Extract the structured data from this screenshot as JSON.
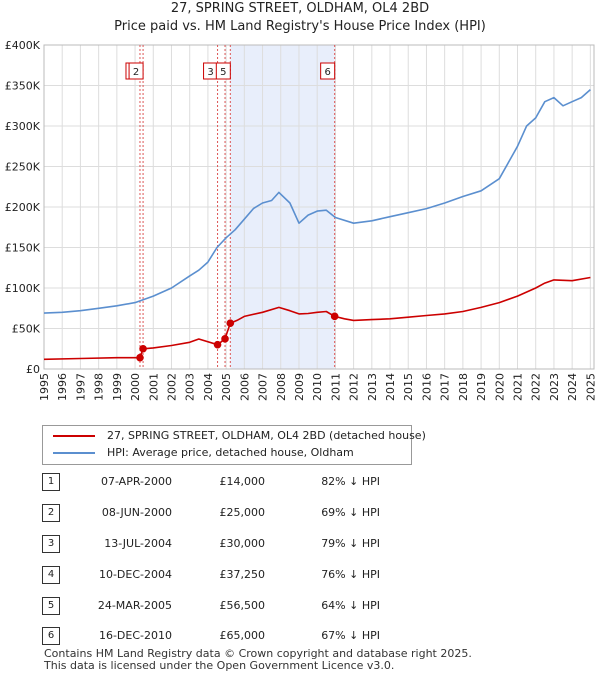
{
  "title": {
    "line1": "27, SPRING STREET, OLDHAM, OL4 2BD",
    "line2": "Price paid vs. HM Land Registry's House Price Index (HPI)"
  },
  "colors": {
    "property": "#cc0000",
    "hpi": "#5b8fcf",
    "shade": "#e8eefb",
    "grid": "#dddddd",
    "marker_box": "#cc0000"
  },
  "legend": {
    "property_label": "27, SPRING STREET, OLDHAM, OL4 2BD (detached house)",
    "hpi_label": "HPI: Average price, detached house, Oldham"
  },
  "chart_data": {
    "type": "line",
    "xlim": [
      1995,
      2025.2
    ],
    "ylim": [
      0,
      400000
    ],
    "x_ticks": [
      "1995",
      "1996",
      "1997",
      "1998",
      "1999",
      "2000",
      "2001",
      "2002",
      "2003",
      "2004",
      "2005",
      "2006",
      "2007",
      "2008",
      "2009",
      "2010",
      "2011",
      "2012",
      "2013",
      "2014",
      "2015",
      "2016",
      "2017",
      "2018",
      "2019",
      "2020",
      "2021",
      "2022",
      "2023",
      "2024",
      "2025"
    ],
    "y_ticks": [
      {
        "value": 0,
        "label": "£0"
      },
      {
        "value": 50000,
        "label": "£50K"
      },
      {
        "value": 100000,
        "label": "£100K"
      },
      {
        "value": 150000,
        "label": "£150K"
      },
      {
        "value": 200000,
        "label": "£200K"
      },
      {
        "value": 250000,
        "label": "£250K"
      },
      {
        "value": 300000,
        "label": "£300K"
      },
      {
        "value": 350000,
        "label": "£350K"
      },
      {
        "value": 400000,
        "label": "£400K"
      }
    ],
    "shaded_range": [
      2005.23,
      2010.96
    ],
    "series": [
      {
        "name": "HPI: Average price, detached house, Oldham",
        "x": [
          1995,
          1996,
          1997,
          1998,
          1999,
          2000,
          2001,
          2002,
          2003,
          2003.5,
          2004,
          2004.5,
          2005,
          2005.5,
          2006,
          2006.5,
          2007,
          2007.5,
          2007.9,
          2008.5,
          2009,
          2009.5,
          2010,
          2010.5,
          2011,
          2012,
          2013,
          2014,
          2015,
          2016,
          2017,
          2018,
          2019,
          2020,
          2020.5,
          2021,
          2021.5,
          2022,
          2022.5,
          2023,
          2023.5,
          2024,
          2024.5,
          2025
        ],
        "y": [
          69000,
          70000,
          72000,
          75000,
          78000,
          82000,
          90000,
          100000,
          115000,
          122000,
          132000,
          150000,
          162000,
          172000,
          185000,
          198000,
          205000,
          208000,
          218000,
          205000,
          180000,
          190000,
          195000,
          196000,
          187000,
          180000,
          183000,
          188000,
          193000,
          198000,
          205000,
          213000,
          220000,
          235000,
          255000,
          275000,
          300000,
          310000,
          330000,
          335000,
          325000,
          330000,
          335000,
          345000
        ]
      },
      {
        "name": "27, SPRING STREET, OLDHAM, OL4 2BD (detached house)",
        "x": [
          1995,
          1997,
          1999,
          2000.27,
          2000.44,
          2001,
          2002,
          2003,
          2003.5,
          2004.53,
          2004.94,
          2005.23,
          2005.6,
          2006,
          2007,
          2007.9,
          2008.5,
          2009,
          2009.5,
          2010,
          2010.5,
          2010.96,
          2011.5,
          2012,
          2013,
          2014,
          2015,
          2016,
          2017,
          2018,
          2019,
          2020,
          2021,
          2022,
          2022.5,
          2023,
          2024,
          2025
        ],
        "y": [
          12000,
          13000,
          14000,
          14000,
          25000,
          26000,
          29000,
          33000,
          37000,
          30000,
          37250,
          56500,
          60000,
          65000,
          70000,
          76000,
          72000,
          68000,
          68500,
          70000,
          71000,
          65000,
          62000,
          60000,
          61000,
          62000,
          64000,
          66000,
          68000,
          71000,
          76000,
          82000,
          90000,
          100000,
          106000,
          110000,
          109000,
          113000
        ]
      }
    ],
    "sales": [
      {
        "id": "1",
        "date": "07-APR-2000",
        "price": "£14,000",
        "hpi": "82% ↓ HPI",
        "x": 2000.27,
        "y": 14000
      },
      {
        "id": "2",
        "date": "08-JUN-2000",
        "price": "£25,000",
        "hpi": "69% ↓ HPI",
        "x": 2000.44,
        "y": 25000
      },
      {
        "id": "3",
        "date": "13-JUL-2004",
        "price": "£30,000",
        "hpi": "79% ↓ HPI",
        "x": 2004.53,
        "y": 30000
      },
      {
        "id": "4",
        "date": "10-DEC-2004",
        "price": "£37,250",
        "hpi": "76% ↓ HPI",
        "x": 2004.94,
        "y": 37250
      },
      {
        "id": "5",
        "date": "24-MAR-2005",
        "price": "£56,500",
        "hpi": "64% ↓ HPI",
        "x": 2005.23,
        "y": 56500
      },
      {
        "id": "6",
        "date": "16-DEC-2010",
        "price": "£65,000",
        "hpi": "67% ↓ HPI",
        "x": 2010.96,
        "y": 65000
      }
    ],
    "markers_at_top": [
      "1",
      "2",
      "3",
      "5",
      "6"
    ]
  },
  "footer": {
    "line1": "Contains HM Land Registry data © Crown copyright and database right 2025.",
    "line2": "This data is licensed under the Open Government Licence v3.0."
  }
}
